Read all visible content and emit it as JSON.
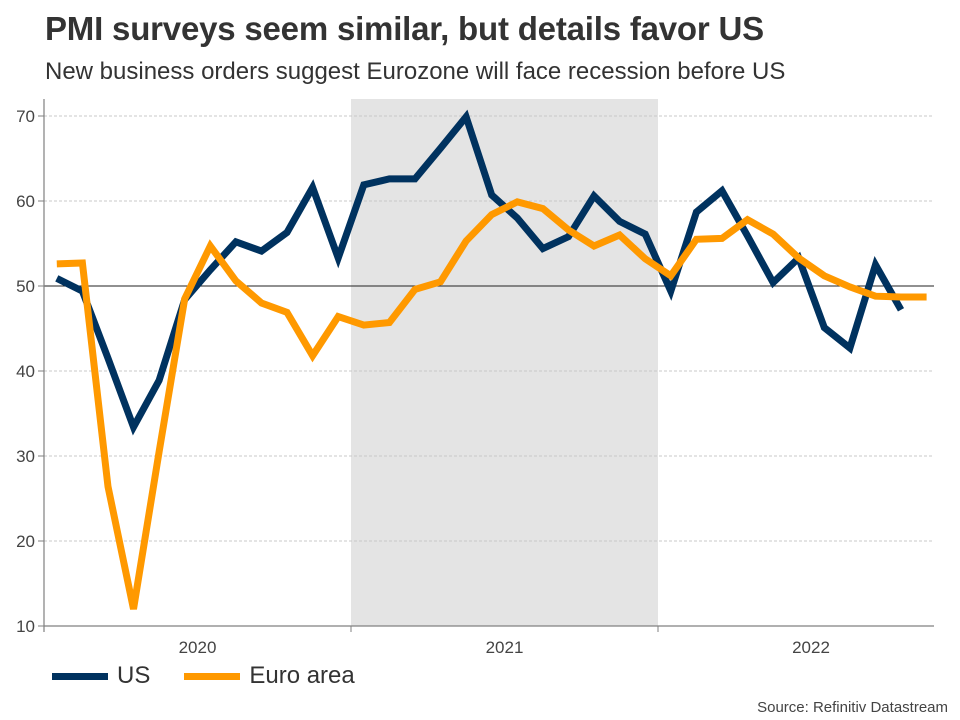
{
  "header": {
    "title": "PMI surveys seem similar, but details favor US",
    "subtitle": "New business orders suggest Eurozone will face recession before US"
  },
  "source": "Source: Refinitiv Datastream",
  "colors": {
    "us": "#00325f",
    "euro": "#ff9900",
    "shade": "#e4e4e4",
    "grid": "#c8c8c8",
    "axis": "#808080",
    "reference": "#222222"
  },
  "chart_data": {
    "type": "line",
    "title": "PMI surveys seem similar, but details favor US",
    "subtitle": "New business orders suggest Eurozone will face recession before US",
    "xlabel": "",
    "ylabel": "",
    "x_start": "2020-01",
    "x_end": "2022-11",
    "x": [
      "2020-01",
      "2020-02",
      "2020-03",
      "2020-04",
      "2020-05",
      "2020-06",
      "2020-07",
      "2020-08",
      "2020-09",
      "2020-10",
      "2020-11",
      "2020-12",
      "2021-01",
      "2021-02",
      "2021-03",
      "2021-04",
      "2021-05",
      "2021-06",
      "2021-07",
      "2021-08",
      "2021-09",
      "2021-10",
      "2021-11",
      "2021-12",
      "2022-01",
      "2022-02",
      "2022-03",
      "2022-04",
      "2022-05",
      "2022-06",
      "2022-07",
      "2022-08",
      "2022-09",
      "2022-10",
      "2022-11"
    ],
    "x_tick_labels": [
      "2020",
      "2021",
      "2022"
    ],
    "ylim": [
      10,
      72
    ],
    "y_ticks": [
      10,
      20,
      30,
      40,
      50,
      60,
      70
    ],
    "reference_line": 50,
    "grid": true,
    "shaded_period": {
      "from": "2021-01",
      "to": "2021-12"
    },
    "legend_position": "bottom-left",
    "series": [
      {
        "name": "US",
        "color": "#00325f",
        "values": [
          50.9,
          49.4,
          41.5,
          33.4,
          38.9,
          48.4,
          51.9,
          55.2,
          54.1,
          56.3,
          61.6,
          53.3,
          61.9,
          62.6,
          62.6,
          66.2,
          69.9,
          60.7,
          58.0,
          54.4,
          55.8,
          60.6,
          57.6,
          56.1,
          49.4,
          58.7,
          61.2,
          55.9,
          50.4,
          53.3,
          45.1,
          42.7,
          52.5,
          47.2,
          null
        ]
      },
      {
        "name": "Euro area",
        "color": "#ff9900",
        "values": [
          52.6,
          52.7,
          26.4,
          12.0,
          30.5,
          48.5,
          54.7,
          50.6,
          48.0,
          46.9,
          41.8,
          46.4,
          45.4,
          45.7,
          49.6,
          50.5,
          55.3,
          58.4,
          59.9,
          59.1,
          56.6,
          54.7,
          56.0,
          53.2,
          51.2,
          55.5,
          55.6,
          57.8,
          56.1,
          53.3,
          51.2,
          49.9,
          48.8,
          48.7,
          48.7
        ]
      }
    ]
  }
}
